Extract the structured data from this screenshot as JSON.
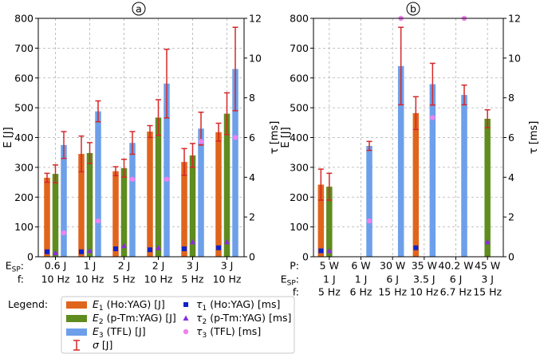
{
  "chart_data": [
    {
      "type": "bar",
      "panel_label": "a",
      "ylabel": "E [J]",
      "y2label": "τ [ms]",
      "ylim": [
        0,
        800
      ],
      "y2lim": [
        0,
        12
      ],
      "yticks": [
        "0",
        "100",
        "200",
        "300",
        "400",
        "500",
        "600",
        "700",
        "800"
      ],
      "y2ticks": [
        "0",
        "2",
        "4",
        "6",
        "8",
        "10",
        "12"
      ],
      "row_labels": [
        "E_SP:",
        "f:"
      ],
      "categories": [
        {
          "row1": "0.6 J",
          "row2": "10 Hz"
        },
        {
          "row1": "1 J",
          "row2": "10 Hz"
        },
        {
          "row1": "2 J",
          "row2": "5 Hz"
        },
        {
          "row1": "2 J",
          "row2": "10 Hz"
        },
        {
          "row1": "3 J",
          "row2": "5 Hz"
        },
        {
          "row1": "3 J",
          "row2": "10 Hz"
        }
      ],
      "series": [
        {
          "name": "E1 (Ho:YAG) [J]",
          "values": [
            265,
            345,
            287,
            420,
            318,
            418
          ],
          "errors": [
            15,
            60,
            15,
            20,
            45,
            30
          ]
        },
        {
          "name": "E2 (p-Tm:YAG) [J]",
          "values": [
            278,
            348,
            297,
            467,
            340,
            480
          ],
          "errors": [
            30,
            35,
            30,
            60,
            40,
            70
          ]
        },
        {
          "name": "E3 (TFL) [J]",
          "values": [
            375,
            488,
            382,
            581,
            430,
            630
          ],
          "errors": [
            45,
            35,
            38,
            115,
            55,
            140
          ]
        }
      ],
      "tau_series": [
        {
          "name": "τ1 (Ho:YAG) [ms]",
          "values": [
            0.25,
            0.25,
            0.4,
            0.35,
            0.4,
            0.45
          ]
        },
        {
          "name": "τ2 (p-Tm:YAG) [ms]",
          "values": [
            0.2,
            0.3,
            0.55,
            0.45,
            0.75,
            0.75
          ]
        },
        {
          "name": "τ3 (TFL) [ms]",
          "values": [
            1.2,
            1.8,
            3.9,
            3.9,
            5.8,
            6.0
          ]
        }
      ]
    },
    {
      "type": "bar",
      "panel_label": "b",
      "ylabel": "E [J]",
      "y2label": "τ [ms]",
      "ylim": [
        0,
        800
      ],
      "y2lim": [
        0,
        12
      ],
      "yticks": [
        "0",
        "100",
        "200",
        "300",
        "400",
        "500",
        "600",
        "700",
        "800"
      ],
      "y2ticks": [
        "0",
        "2",
        "4",
        "6",
        "8",
        "10",
        "12"
      ],
      "row_labels": [
        "P:",
        "E_SP:",
        "f:"
      ],
      "categories": [
        {
          "row0": "5 W",
          "row1": "1 J",
          "row2": "5 Hz"
        },
        {
          "row0": "6 W",
          "row1": "1 J",
          "row2": "6 Hz"
        },
        {
          "row0": "30 W",
          "row1": "6 J",
          "row2": "15 Hz"
        },
        {
          "row0": "35 W",
          "row1": "3.5 J",
          "row2": "10 Hz"
        },
        {
          "row0": "40.2 W",
          "row1": "6 J",
          "row2": "6.7 Hz"
        },
        {
          "row0": "45 W",
          "row1": "3 J",
          "row2": "15 Hz"
        }
      ],
      "series": [
        {
          "name": "E1 (Ho:YAG) [J]",
          "values": [
            242,
            null,
            null,
            482,
            null,
            null
          ],
          "errors": [
            52,
            null,
            null,
            55,
            null,
            null
          ]
        },
        {
          "name": "E2 (p-Tm:YAG) [J]",
          "values": [
            235,
            null,
            null,
            null,
            null,
            463
          ],
          "errors": [
            45,
            null,
            null,
            null,
            null,
            30
          ]
        },
        {
          "name": "E3 (TFL) [J]",
          "values": [
            null,
            372,
            640,
            579,
            543,
            null
          ],
          "errors": [
            null,
            15,
            130,
            70,
            33,
            null
          ]
        }
      ],
      "tau_series": [
        {
          "name": "τ1 (Ho:YAG) [ms]",
          "values": [
            0.3,
            null,
            null,
            0.45,
            null,
            null
          ]
        },
        {
          "name": "τ2 (p-Tm:YAG) [ms]",
          "values": [
            0.3,
            null,
            null,
            null,
            null,
            0.75
          ]
        },
        {
          "name": "τ3 (TFL) [ms]",
          "values": [
            null,
            1.8,
            12.0,
            7.0,
            12.0,
            null
          ]
        }
      ]
    }
  ],
  "legend": {
    "title": "Legend:",
    "bars": [
      {
        "label": "E1 (Ho:YAG) [J]",
        "main": "E",
        "sub": "1",
        "rest": " (Ho:YAG) [J]"
      },
      {
        "label": "E2 (p-Tm:YAG) [J]",
        "main": "E",
        "sub": "2",
        "rest": " (p-Tm:YAG) [J]"
      },
      {
        "label": "E3 (TFL) [J]",
        "main": "E",
        "sub": "3",
        "rest": " (TFL) [J]"
      },
      {
        "label": "σ [J]",
        "main": "σ",
        "sub": "",
        "rest": " [J]"
      }
    ],
    "markers": [
      {
        "label": "τ1 (Ho:YAG) [ms]",
        "main": "τ",
        "sub": "1",
        "rest": " (Ho:YAG) [ms]"
      },
      {
        "label": "τ2 (p-Tm:YAG) [ms]",
        "main": "τ",
        "sub": "2",
        "rest": " (p-Tm:YAG) [ms]"
      },
      {
        "label": "τ3 (TFL) [ms]",
        "main": "τ",
        "sub": "3",
        "rest": " (TFL) [ms]"
      }
    ]
  },
  "colors": {
    "e1": "#e0651c",
    "e2": "#5f8c1e",
    "e3": "#6d9fea",
    "error": "#d62728",
    "tau1": "#1022c8",
    "tau2": "#8a2be2",
    "tau3": "#ee82ee",
    "grid": "#b0b0b0"
  }
}
